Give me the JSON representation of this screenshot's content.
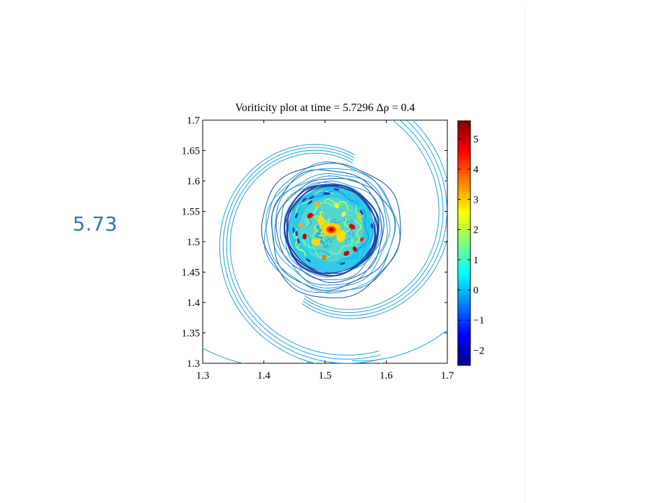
{
  "slide": {
    "side_label": "5.73"
  },
  "chart_data": {
    "type": "contour",
    "title": "Voriticity plot at time = 5.7296   Δρ = 0.4",
    "xlabel": "",
    "ylabel": "",
    "xlim": [
      1.3,
      1.7
    ],
    "ylim": [
      1.3,
      1.7
    ],
    "x_ticks": [
      "1.3",
      "1.4",
      "1.5",
      "1.6",
      "1.7"
    ],
    "y_ticks": [
      "1.3",
      "1.35",
      "1.4",
      "1.45",
      "1.5",
      "1.55",
      "1.6",
      "1.65",
      "1.7"
    ],
    "colorbar": {
      "range": [
        -2.5,
        5.6
      ],
      "ticks": [
        "−2",
        "−1",
        "0",
        "1",
        "2",
        "3",
        "4",
        "5"
      ],
      "tick_values": [
        -2,
        -1,
        0,
        1,
        2,
        3,
        4,
        5
      ],
      "colormap": "jet"
    },
    "vortex": {
      "center": [
        1.51,
        1.52
      ],
      "core_radius": 0.07,
      "outer_radius": 0.105,
      "peak_vorticity": 5.5,
      "min_vorticity": -2.4
    },
    "colors": {
      "jet_low": "#00008f",
      "jet_mid": "#00ffff",
      "jet_high": "#800000",
      "contour_outer": "#2ea8e0",
      "contour_ring": "#1d5fb8"
    }
  }
}
